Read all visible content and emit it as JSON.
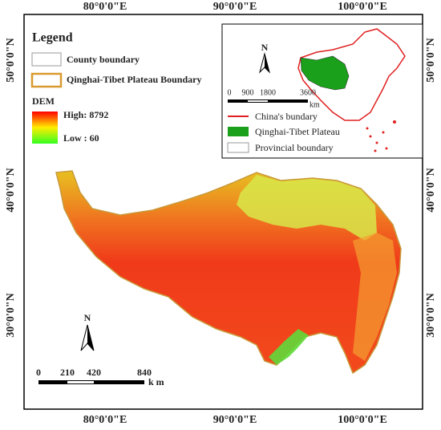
{
  "map": {
    "axes": {
      "top": [
        "80°0'0\"E",
        "90°0'0\"E",
        "100°0'0\"E"
      ],
      "bottom": [
        "80°0'0\"E",
        "90°0'0\"E",
        "100°0'0\"E"
      ],
      "left": [
        "50°0'0\"N",
        "40°0'0\"N",
        "30°0'0\"N"
      ],
      "right": [
        "50°0'0\"N",
        "40°0'0\"N",
        "30°0'0\"N"
      ]
    },
    "legend": {
      "title": "Legend",
      "county": "County boundary",
      "plateau": "Qinghai-Tibet Plateau Boundary",
      "dem": "DEM",
      "high": "High: 8792",
      "low": "Low  : 60"
    },
    "north_arrow": "N",
    "scale_bar": {
      "ticks": [
        "0",
        "210",
        "420",
        "840"
      ],
      "unit": "k m"
    },
    "inset": {
      "north_arrow": "N",
      "scale_ticks": [
        "0",
        "900",
        "1800",
        "3600"
      ],
      "unit": "km",
      "china": "China's bundary",
      "plateau": "Qinghai-Tibet Plateau",
      "provincial": "Provincial  boundary"
    }
  }
}
